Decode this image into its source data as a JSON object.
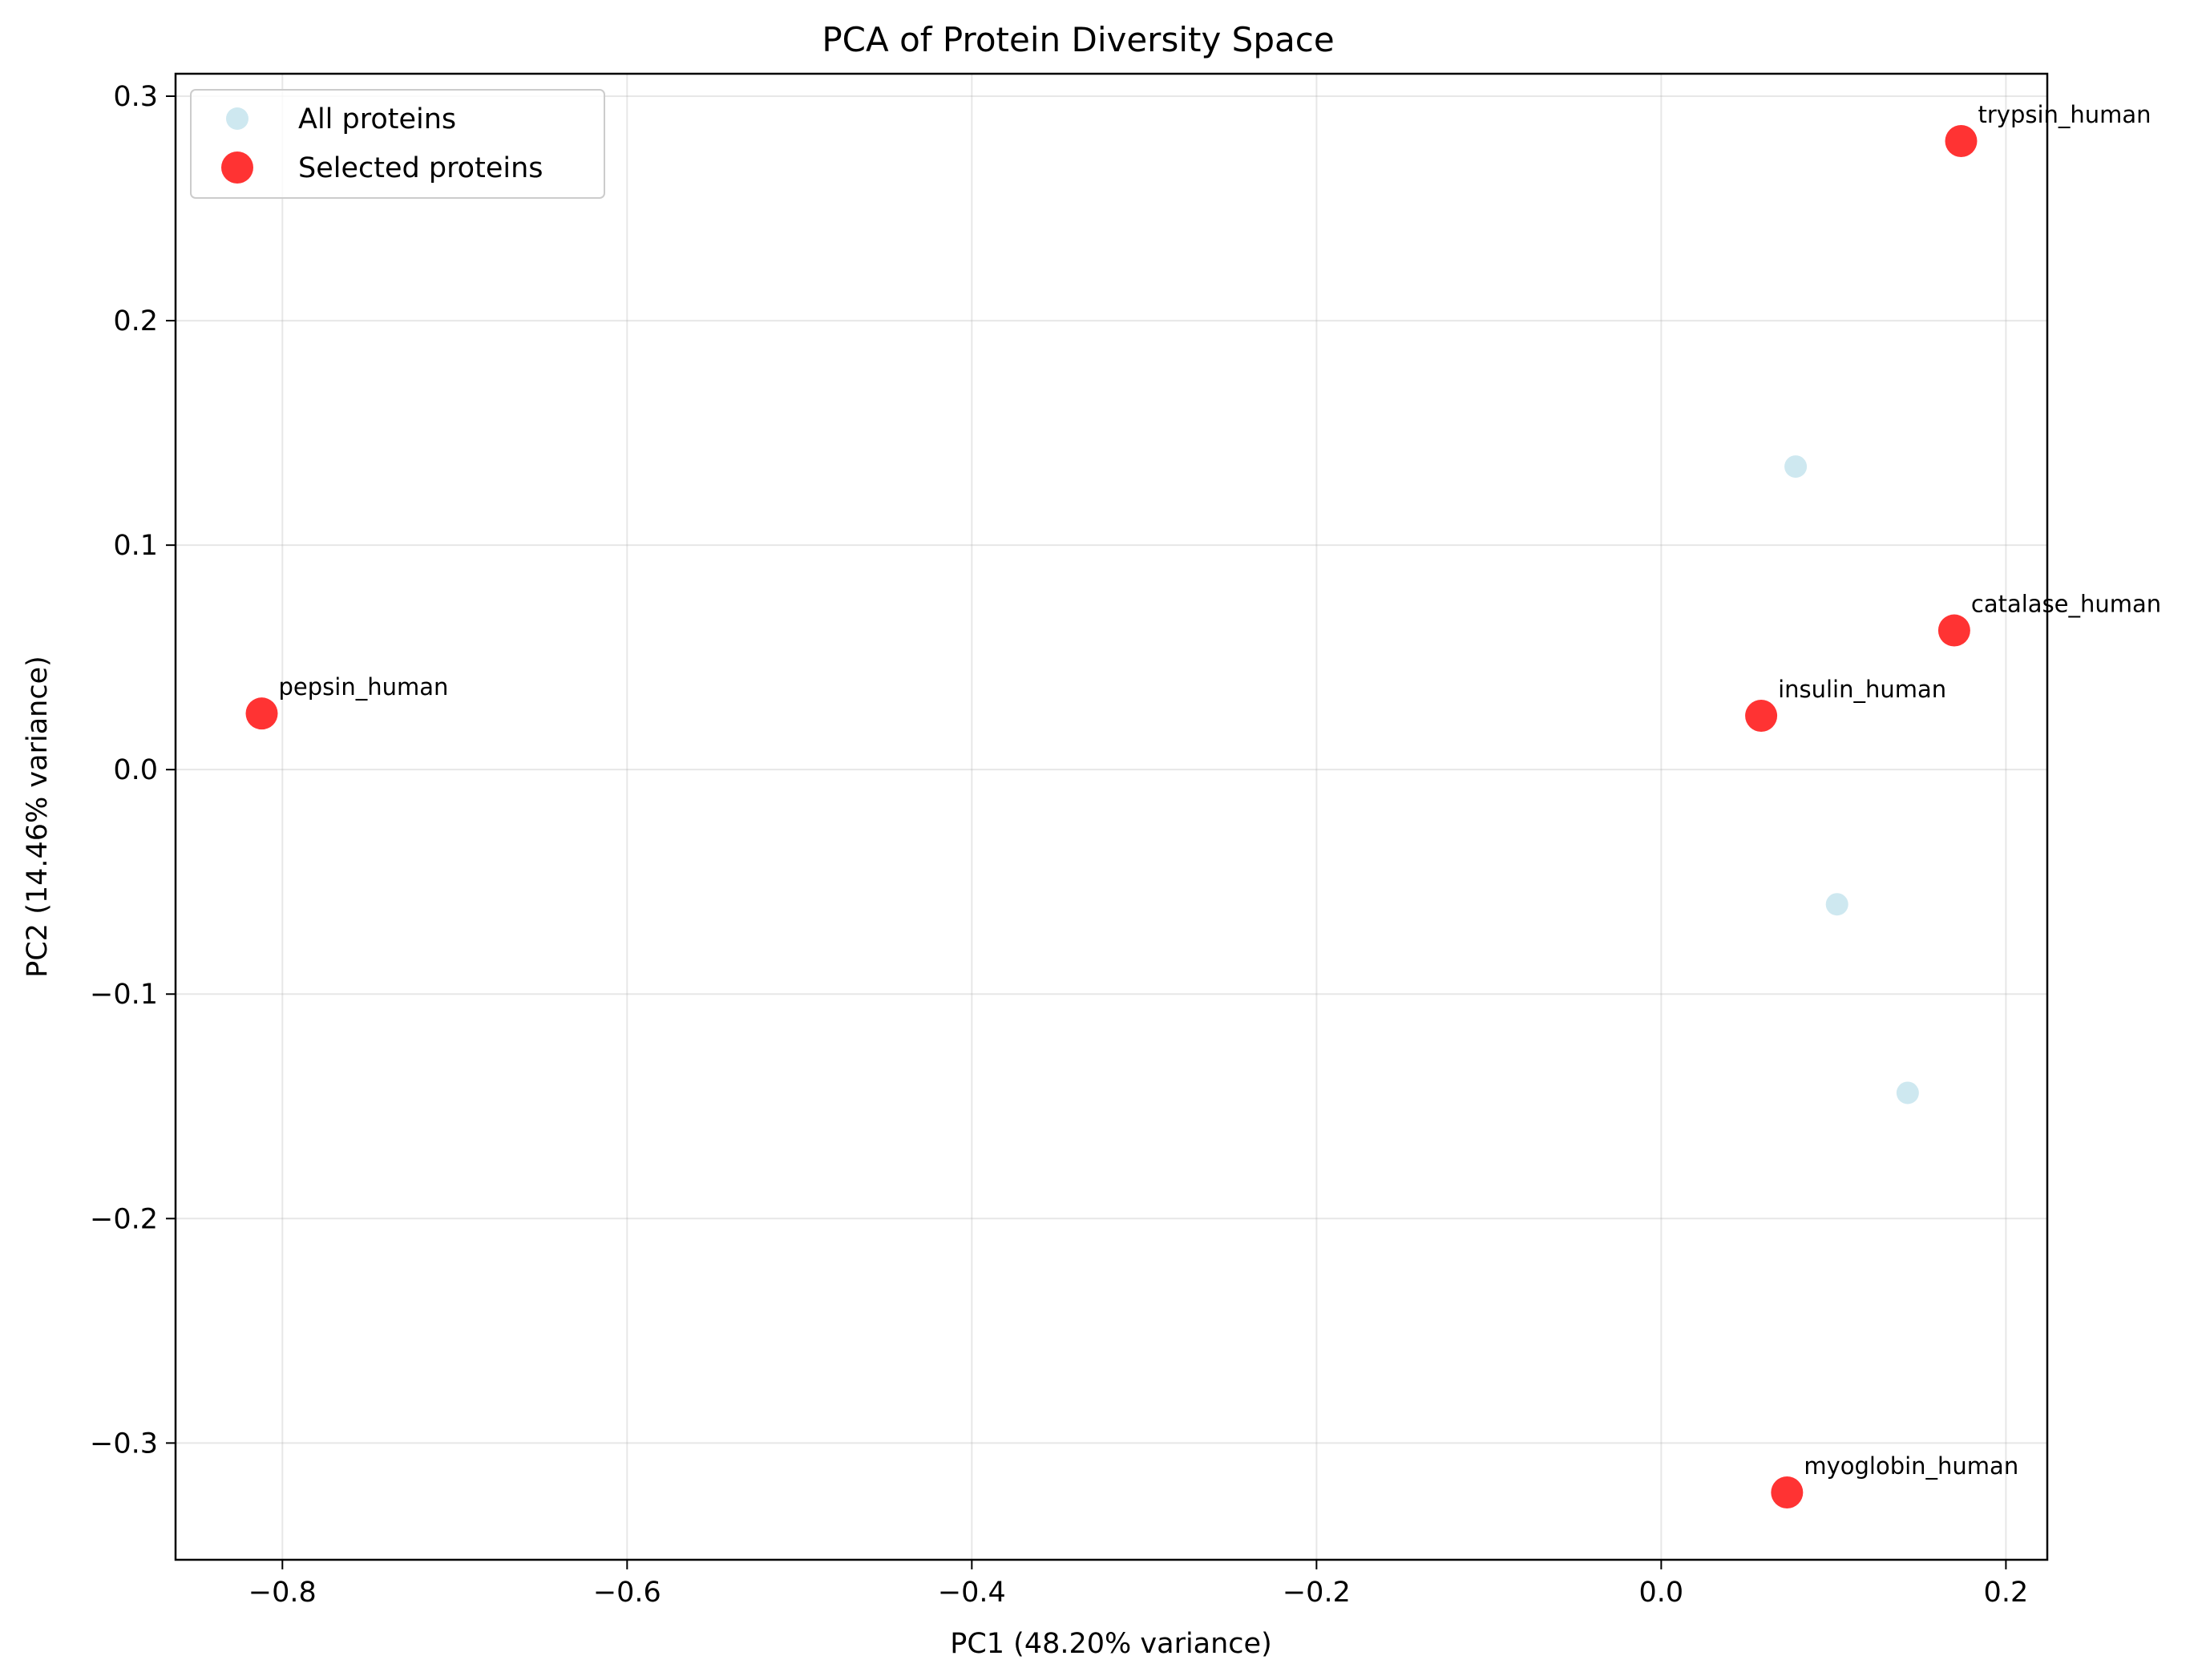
{
  "chart_data": {
    "type": "scatter",
    "title": "PCA of Protein Diversity Space",
    "xlabel": "PC1 (48.20% variance)",
    "ylabel": "PC2 (14.46% variance)",
    "xlim": [
      -0.862,
      0.224
    ],
    "ylim": [
      -0.352,
      0.31
    ],
    "xticks": [
      -0.8,
      -0.6,
      -0.4,
      -0.2,
      0.0,
      0.2
    ],
    "xtick_labels": [
      "−0.8",
      "−0.6",
      "−0.4",
      "−0.2",
      "0.0",
      "0.2"
    ],
    "yticks": [
      -0.3,
      -0.2,
      -0.1,
      0.0,
      0.1,
      0.2,
      0.3
    ],
    "ytick_labels": [
      "−0.3",
      "−0.2",
      "−0.1",
      "0.0",
      "0.1",
      "0.2",
      "0.3"
    ],
    "grid": true,
    "legend_position": "top-left",
    "series": [
      {
        "name": "All proteins",
        "color": "#add8e6",
        "points": [
          {
            "x": 0.078,
            "y": 0.135
          },
          {
            "x": 0.102,
            "y": -0.06
          },
          {
            "x": 0.143,
            "y": -0.144
          }
        ]
      },
      {
        "name": "Selected proteins",
        "color": "#ff0000",
        "points": [
          {
            "x": 0.174,
            "y": 0.28,
            "label": "trypsin_human"
          },
          {
            "x": 0.17,
            "y": 0.062,
            "label": "catalase_human"
          },
          {
            "x": 0.058,
            "y": 0.024,
            "label": "insulin_human"
          },
          {
            "x": -0.812,
            "y": 0.025,
            "label": "pepsin_human"
          },
          {
            "x": 0.073,
            "y": -0.322,
            "label": "myoglobin_human"
          }
        ]
      }
    ]
  }
}
